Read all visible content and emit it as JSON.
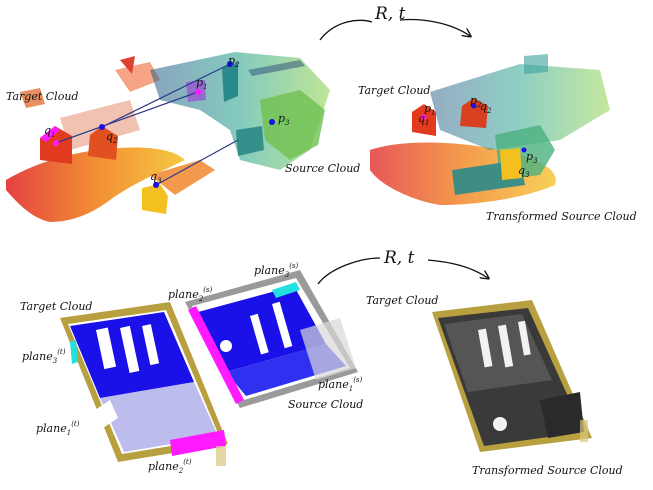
{
  "top": {
    "transform_label": "R, t",
    "target_label": "Target Cloud",
    "source_label": "Source Cloud",
    "transformed_label": "Transformed Source Cloud",
    "points": {
      "q1": "q",
      "q1_sub": "1",
      "q2": "q",
      "q2_sub": "2",
      "q3": "q",
      "q3_sub": "3",
      "p1": "p",
      "p1_sub": "1",
      "p2": "p",
      "p2_sub": "2",
      "p3": "p",
      "p3_sub": "3",
      "right_q1": "q",
      "right_q1_sub": "1",
      "right_q2": "q",
      "right_q2_sub": "2",
      "right_q3": "q",
      "right_q3_sub": "3",
      "right_p1": "p",
      "right_p1_sub": "1",
      "right_p2": "p",
      "right_p2_sub": "2",
      "right_p3": "p",
      "right_p3_sub": "3"
    }
  },
  "bottom": {
    "transform_label": "R, t",
    "target_label": "Target Cloud",
    "source_label": "Source Cloud",
    "right_target_label": "Target Cloud",
    "transformed_label": "Transformed Source Cloud",
    "planes": {
      "plane3_t": "plane",
      "plane3_t_sub": "3",
      "plane3_t_sup": "(t)",
      "plane1_t": "plane",
      "plane1_t_sub": "1",
      "plane1_t_sup": "(t)",
      "plane2_t": "plane",
      "plane2_t_sub": "2",
      "plane2_t_sup": "(t)",
      "plane3_s": "plane",
      "plane3_s_sub": "3",
      "plane3_s_sup": "(s)",
      "plane2_s": "plane",
      "plane2_s_sub": "2",
      "plane2_s_sup": "(s)",
      "plane1_s": "plane",
      "plane1_s_sub": "1",
      "plane1_s_sup": "(s)"
    }
  },
  "colors": {
    "plane_blue": "#1a10e8",
    "plane_magenta": "#ff1aff",
    "plane_cyan": "#22e0e0",
    "wood": "#b8a040",
    "correspondence_line": "#2a3a8a"
  }
}
